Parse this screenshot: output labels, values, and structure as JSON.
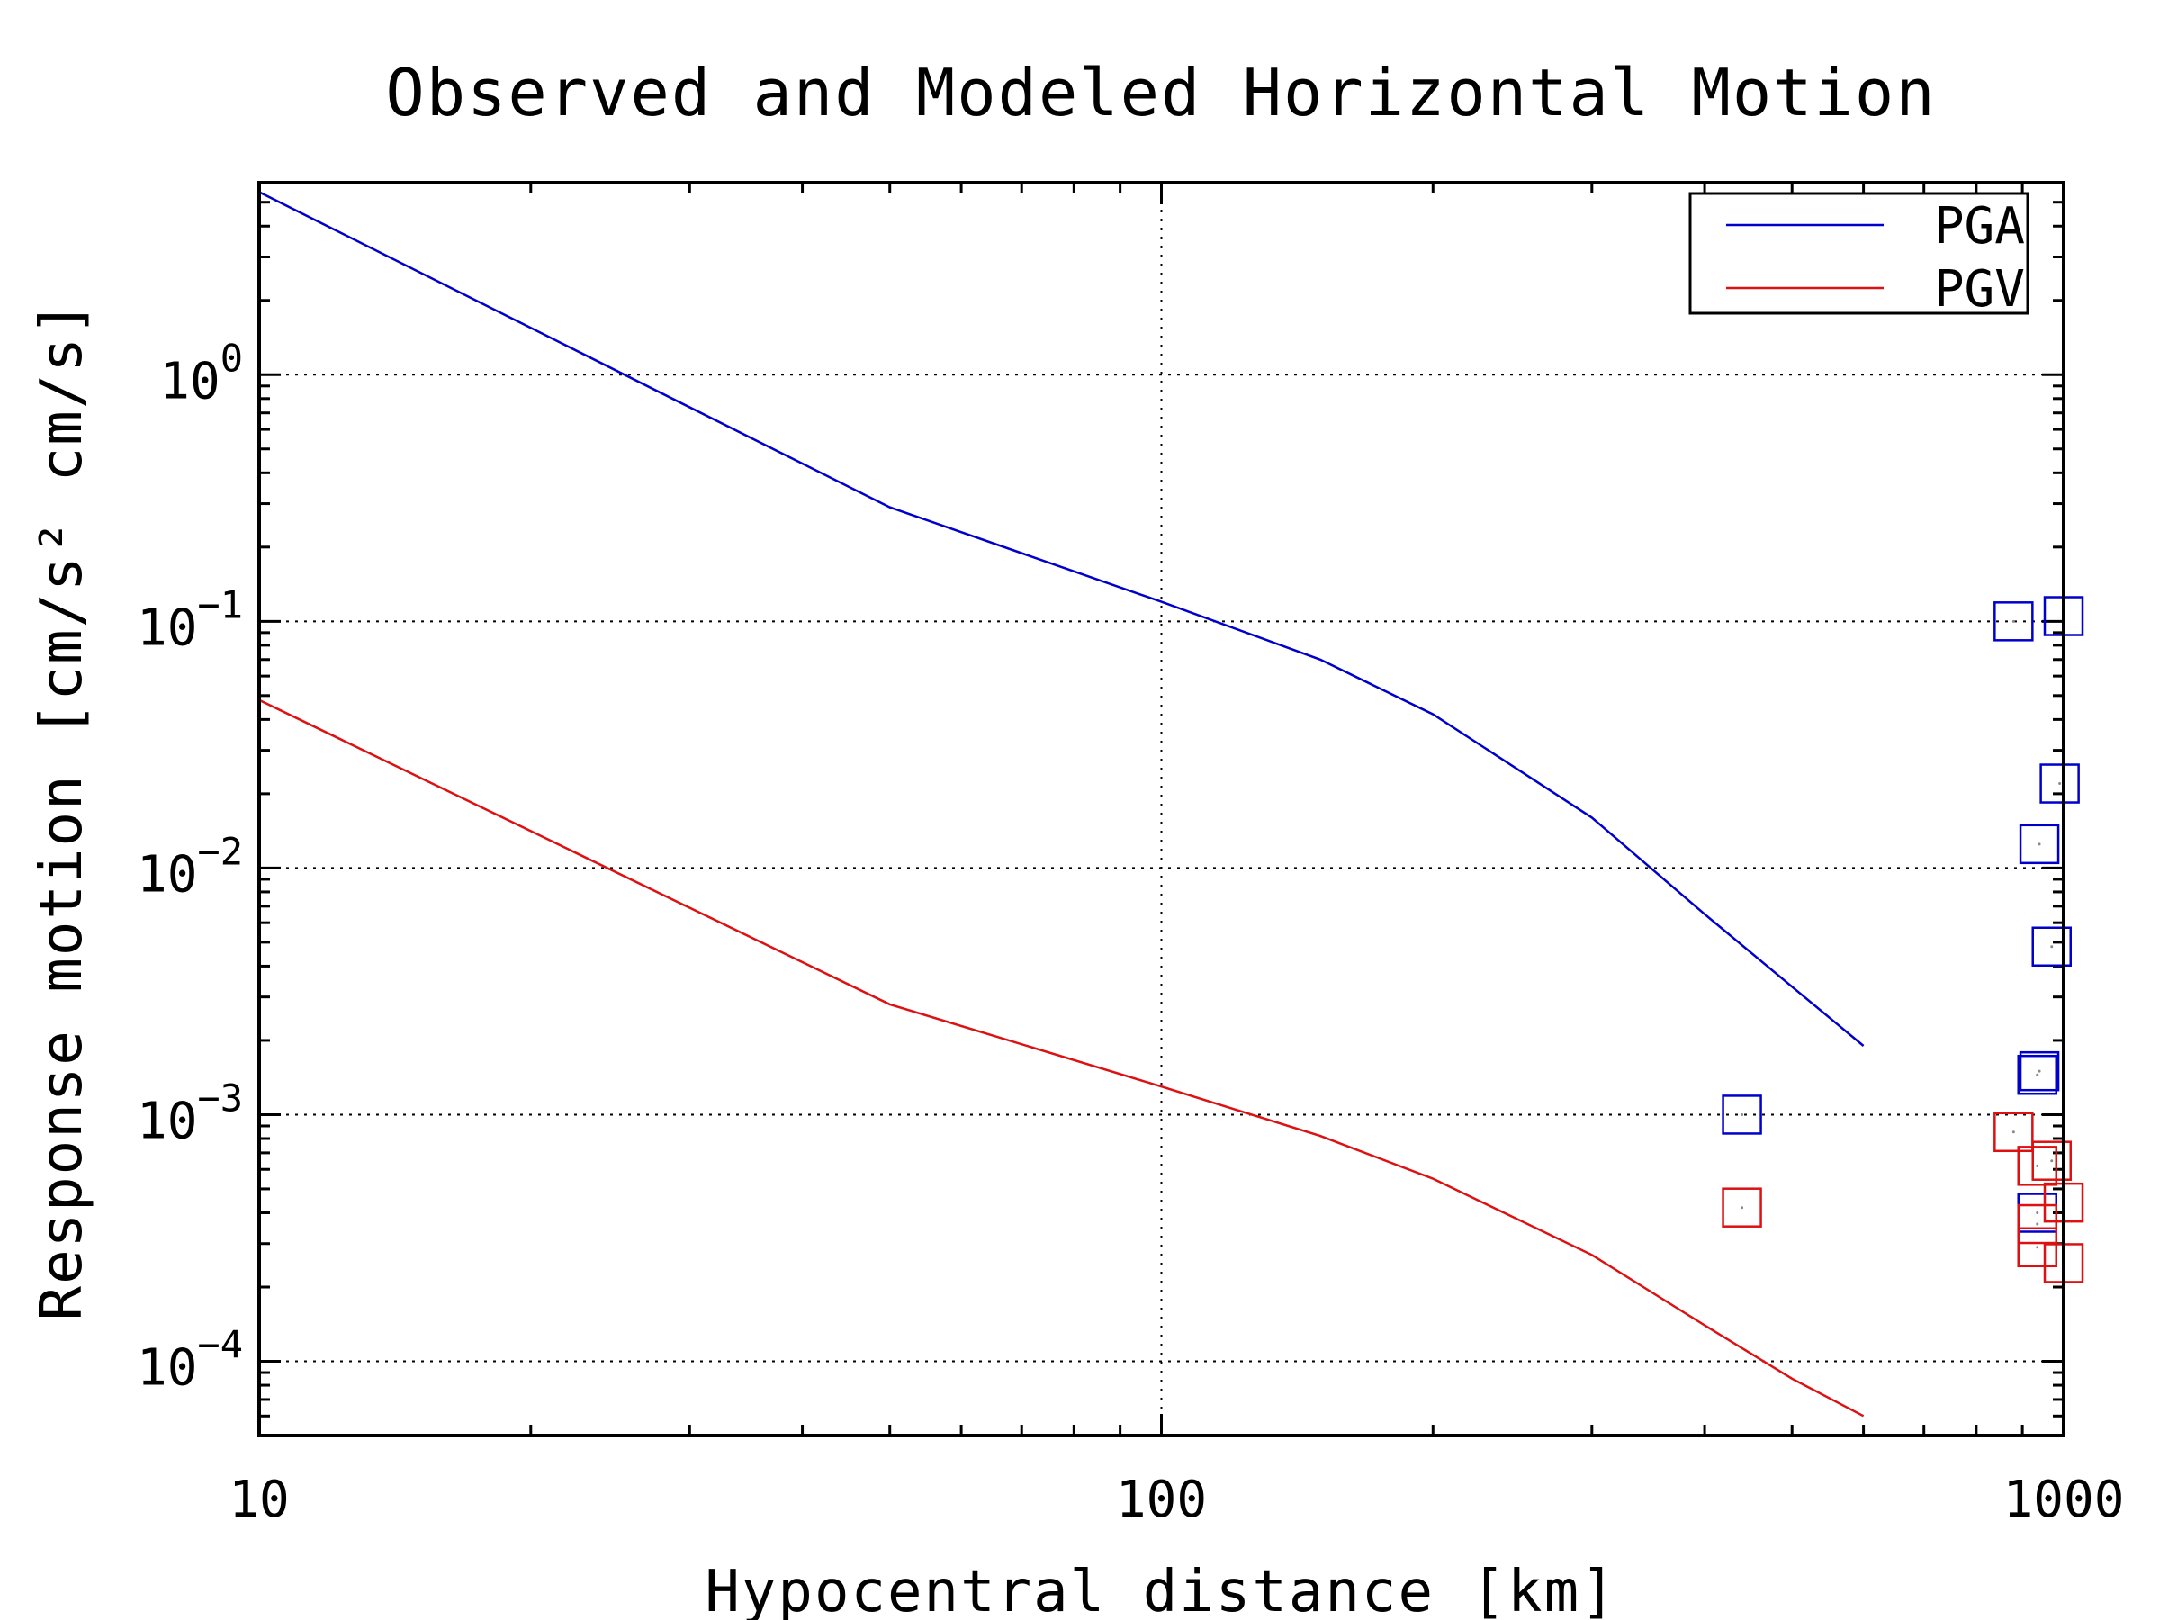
{
  "chart_data": {
    "type": "line",
    "title": "Observed and Modeled Horizontal Motion",
    "xlabel": "Hypocentral distance [km]",
    "ylabel": "Response motion [cm/s² cm/s]",
    "x_scale": "log",
    "y_scale": "log",
    "xlim": [
      10,
      1000
    ],
    "ylim": [
      5e-05,
      6
    ],
    "x_ticks": [
      {
        "value": 10,
        "label": "10"
      },
      {
        "value": 100,
        "label": "100"
      },
      {
        "value": 1000,
        "label": "1000"
      }
    ],
    "y_ticks": [
      {
        "value": 1,
        "base": "10",
        "exp": "0"
      },
      {
        "value": 0.1,
        "base": "10",
        "exp": "−1"
      },
      {
        "value": 0.01,
        "base": "10",
        "exp": "−2"
      },
      {
        "value": 0.001,
        "base": "10",
        "exp": "−3"
      },
      {
        "value": 0.0001,
        "base": "10",
        "exp": "−4"
      }
    ],
    "grid": true,
    "legend_position": "top-right",
    "series": [
      {
        "name": "PGA",
        "color": "#0000cc",
        "x": [
          10,
          50,
          100,
          150,
          200,
          300,
          400,
          500,
          600
        ],
        "y": [
          5.5,
          0.29,
          0.12,
          0.07,
          0.042,
          0.016,
          0.0065,
          0.0033,
          0.0019
        ]
      },
      {
        "name": "PGV",
        "color": "#dd1111",
        "x": [
          10,
          50,
          100,
          150,
          200,
          300,
          400,
          500,
          600
        ],
        "y": [
          0.048,
          0.0028,
          0.0013,
          0.00082,
          0.00055,
          0.00027,
          0.00014,
          8.5e-05,
          6e-05
        ]
      }
    ],
    "observations": [
      {
        "series": "PGA",
        "color": "#0000cc",
        "points": [
          [
            440,
            0.001
          ],
          [
            880,
            0.1
          ],
          [
            1000,
            0.105
          ],
          [
            990,
            0.022
          ],
          [
            940,
            0.0125
          ],
          [
            970,
            0.0048
          ],
          [
            940,
            0.0015
          ],
          [
            935,
            0.00145
          ],
          [
            935,
            0.0004
          ]
        ]
      },
      {
        "series": "PGV",
        "color": "#dd1111",
        "points": [
          [
            440,
            0.00042
          ],
          [
            880,
            0.00085
          ],
          [
            935,
            0.00062
          ],
          [
            970,
            0.00065
          ],
          [
            1000,
            0.00044
          ],
          [
            935,
            0.00036
          ],
          [
            935,
            0.00029
          ],
          [
            1000,
            0.00025
          ]
        ]
      }
    ]
  }
}
